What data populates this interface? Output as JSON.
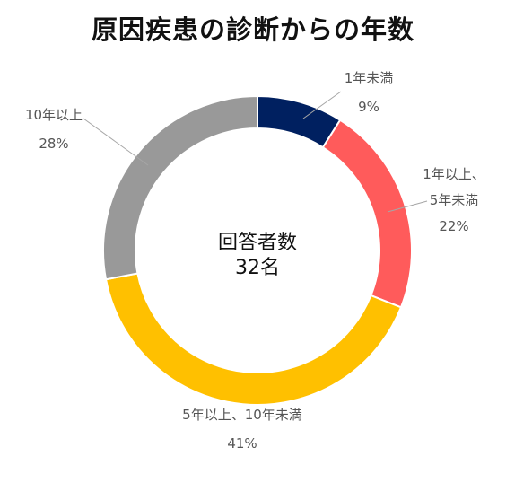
{
  "chart_data": {
    "type": "pie",
    "title": "原因疾患の診断からの年数",
    "center_label": {
      "line1": "回答者数",
      "line2": "32名"
    },
    "legend": "none",
    "slices": [
      {
        "label": "1年未満",
        "label_lines": [
          "1年未満"
        ],
        "value": 9,
        "value_text": "9%",
        "color": "#002060"
      },
      {
        "label": "1年以上、5年未満",
        "label_lines": [
          "1年以上、",
          "5年未満"
        ],
        "value": 22,
        "value_text": "22%",
        "color": "#FF5B5B"
      },
      {
        "label": "5年以上、10年未満",
        "label_lines": [
          "5年以上、10年未満"
        ],
        "value": 41,
        "value_text": "41%",
        "color": "#FFC000"
      },
      {
        "label": "10年以上",
        "label_lines": [
          "10年以上"
        ],
        "value": 28,
        "value_text": "28%",
        "color": "#999999"
      }
    ]
  }
}
